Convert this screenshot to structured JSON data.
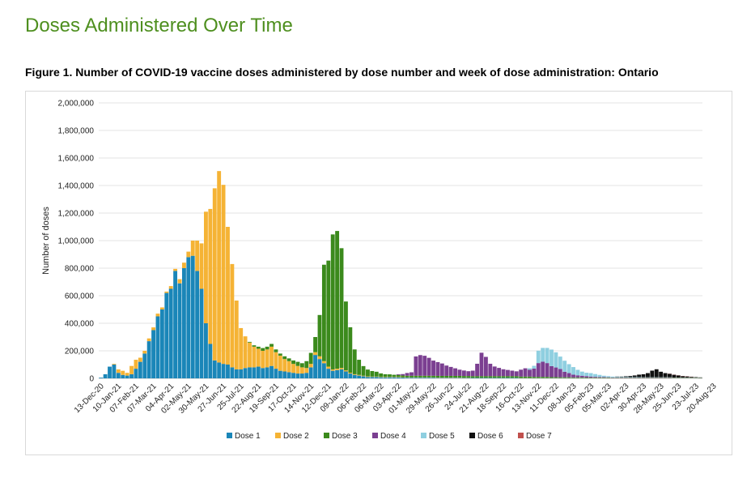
{
  "page": {
    "heading": "Doses Administered Over Time",
    "caption": "Figure 1. Number of COVID-19 vaccine doses administered by dose number and week of dose administration: Ontario"
  },
  "chart_data": {
    "type": "bar",
    "stacked": true,
    "title": "Figure 1. Number of COVID-19 vaccine doses administered by dose number and week of dose administration: Ontario",
    "xlabel": "",
    "ylabel": "Number of doses",
    "ylim": [
      0,
      2000000
    ],
    "yticks": [
      0,
      200000,
      400000,
      600000,
      800000,
      1000000,
      1200000,
      1400000,
      1600000,
      1800000,
      2000000
    ],
    "ytick_labels": [
      "0",
      "200,000",
      "400,000",
      "600,000",
      "800,000",
      "1,000,000",
      "1,200,000",
      "1,400,000",
      "1,600,000",
      "1,800,000",
      "2,000,000"
    ],
    "xtick_labels": [
      "13-Dec-20",
      "10-Jan-21",
      "07-Feb-21",
      "07-Mar-21",
      "04-Apr-21",
      "02-May-21",
      "30-May-21",
      "27-Jun-21",
      "25-Jul-21",
      "22-Aug-21",
      "19-Sep-21",
      "17-Oct-21",
      "14-Nov-21",
      "12-Dec-21",
      "09-Jan-22",
      "06-Feb-22",
      "06-Mar-22",
      "03-Apr-22",
      "01-May-22",
      "29-May-22",
      "26-Jun-22",
      "24-Jul-22",
      "21-Aug-22",
      "18-Sep-22",
      "16-Oct-22",
      "13-Nov-22",
      "11-Dec-22",
      "08-Jan-23",
      "05-Feb-23",
      "05-Mar-23",
      "02-Apr-23",
      "30-Apr-23",
      "28-May-23",
      "25-Jun-23",
      "23-Jul-23",
      "20-Aug-23"
    ],
    "tick_every": 4,
    "grid": true,
    "legend_position": "bottom",
    "series": [
      {
        "name": "Dose 1",
        "color": "#1a86b8",
        "values": [
          5000,
          30000,
          85000,
          100000,
          40000,
          25000,
          20000,
          30000,
          70000,
          120000,
          180000,
          270000,
          350000,
          450000,
          500000,
          620000,
          650000,
          780000,
          690000,
          800000,
          880000,
          890000,
          780000,
          650000,
          400000,
          250000,
          130000,
          115000,
          105000,
          100000,
          80000,
          65000,
          65000,
          75000,
          80000,
          80000,
          85000,
          75000,
          80000,
          90000,
          70000,
          55000,
          50000,
          45000,
          40000,
          35000,
          35000,
          40000,
          80000,
          170000,
          140000,
          110000,
          70000,
          55000,
          60000,
          65000,
          50000,
          35000,
          25000,
          20000,
          15000,
          10000,
          10000,
          10000,
          8000,
          7000,
          8000,
          8000,
          7000,
          6000,
          5000,
          5000,
          5000,
          5000,
          5000,
          5000,
          5000,
          4000,
          4000,
          4000,
          4000,
          4000,
          4000,
          3000,
          3000,
          3000,
          3000,
          3000,
          3000,
          3000,
          3000,
          3000,
          3000,
          3000,
          3000,
          3000,
          2000,
          2000,
          2000,
          2000,
          2000,
          2000,
          2000,
          2000,
          2000,
          2000,
          2000,
          2000,
          2000,
          2000,
          2000,
          2000,
          1000,
          1000,
          1000,
          1000,
          1000,
          1000,
          1000,
          1000,
          1000,
          1000,
          1000,
          1000,
          1000,
          1000,
          1000,
          1000,
          1000,
          1000,
          1000,
          1000,
          1000,
          1000,
          1000,
          1000,
          1000,
          1000
        ]
      },
      {
        "name": "Dose 2",
        "color": "#f5b335",
        "values": [
          0,
          0,
          0,
          5000,
          25000,
          30000,
          20000,
          60000,
          65000,
          30000,
          20000,
          20000,
          20000,
          20000,
          15000,
          10000,
          20000,
          15000,
          30000,
          40000,
          40000,
          110000,
          220000,
          330000,
          810000,
          980000,
          1250000,
          1390000,
          1300000,
          1000000,
          750000,
          500000,
          300000,
          230000,
          180000,
          150000,
          130000,
          125000,
          130000,
          140000,
          120000,
          110000,
          90000,
          80000,
          65000,
          55000,
          45000,
          35000,
          25000,
          20000,
          20000,
          15000,
          15000,
          10000,
          10000,
          10000,
          8000,
          6000,
          5000,
          5000,
          4000,
          4000,
          3000,
          3000,
          3000,
          3000,
          3000,
          3000,
          3000,
          3000,
          2000,
          2000,
          2000,
          2000,
          2000,
          2000,
          2000,
          2000,
          2000,
          2000,
          2000,
          2000,
          2000,
          2000,
          2000,
          1000,
          1000,
          1000,
          1000,
          1000,
          1000,
          1000,
          1000,
          1000,
          1000,
          1000,
          1000,
          1000,
          1000,
          1000,
          1000,
          1000,
          1000,
          1000,
          1000,
          1000,
          1000,
          1000,
          1000,
          1000,
          1000,
          1000,
          1000,
          1000,
          1000,
          1000,
          1000,
          1000,
          1000,
          1000,
          1000,
          1000,
          1000,
          1000,
          1000,
          1000,
          1000,
          1000,
          1000,
          1000,
          1000,
          1000,
          1000,
          1000,
          1000,
          1000,
          1000,
          1000
        ]
      },
      {
        "name": "Dose 3",
        "color": "#3b8a1c",
        "values": [
          0,
          0,
          0,
          0,
          0,
          0,
          0,
          0,
          0,
          0,
          0,
          0,
          0,
          0,
          0,
          0,
          0,
          0,
          0,
          0,
          0,
          0,
          0,
          0,
          0,
          0,
          0,
          0,
          0,
          0,
          0,
          0,
          0,
          0,
          5000,
          10000,
          15000,
          20000,
          20000,
          20000,
          20000,
          15000,
          20000,
          20000,
          25000,
          30000,
          30000,
          50000,
          80000,
          110000,
          300000,
          700000,
          770000,
          980000,
          1000000,
          870000,
          500000,
          330000,
          180000,
          110000,
          70000,
          50000,
          40000,
          35000,
          25000,
          20000,
          18000,
          15000,
          15000,
          12000,
          12000,
          12000,
          12000,
          12000,
          12000,
          12000,
          12000,
          12000,
          12000,
          12000,
          12000,
          12000,
          12000,
          12000,
          12000,
          12000,
          12000,
          12000,
          12000,
          12000,
          12000,
          12000,
          12000,
          12000,
          12000,
          12000,
          10000,
          10000,
          10000,
          8000,
          8000,
          8000,
          8000,
          6000,
          6000,
          5000,
          5000,
          5000,
          4000,
          4000,
          4000,
          3000,
          3000,
          3000,
          3000,
          3000,
          3000,
          2000,
          2000,
          2000,
          2000,
          2000,
          2000,
          2000,
          2000,
          2000,
          2000,
          2000,
          2000,
          2000,
          2000,
          2000,
          2000,
          2000,
          2000,
          2000,
          2000,
          1000
        ]
      },
      {
        "name": "Dose 4",
        "color": "#7b3f91",
        "values": [
          0,
          0,
          0,
          0,
          0,
          0,
          0,
          0,
          0,
          0,
          0,
          0,
          0,
          0,
          0,
          0,
          0,
          0,
          0,
          0,
          0,
          0,
          0,
          0,
          0,
          0,
          0,
          0,
          0,
          0,
          0,
          0,
          0,
          0,
          0,
          0,
          0,
          0,
          0,
          0,
          0,
          0,
          0,
          0,
          0,
          0,
          0,
          0,
          0,
          0,
          0,
          0,
          0,
          0,
          0,
          0,
          0,
          0,
          0,
          0,
          0,
          0,
          0,
          0,
          0,
          0,
          0,
          0,
          5000,
          10000,
          20000,
          25000,
          140000,
          150000,
          145000,
          130000,
          110000,
          100000,
          90000,
          75000,
          65000,
          55000,
          45000,
          40000,
          35000,
          40000,
          90000,
          170000,
          140000,
          90000,
          70000,
          60000,
          50000,
          45000,
          40000,
          35000,
          50000,
          60000,
          50000,
          60000,
          100000,
          110000,
          100000,
          80000,
          70000,
          60000,
          40000,
          30000,
          20000,
          15000,
          12000,
          10000,
          8000,
          6000,
          5000,
          4000,
          3000,
          3000,
          2000,
          2000,
          2000,
          2000,
          2000,
          2000,
          2000,
          2000,
          2000,
          2000,
          2000,
          2000,
          2000,
          1000,
          1000,
          1000,
          1000,
          1000,
          1000,
          1000,
          1000,
          1000
        ]
      },
      {
        "name": "Dose 5",
        "color": "#8fcfe0",
        "values": [
          0,
          0,
          0,
          0,
          0,
          0,
          0,
          0,
          0,
          0,
          0,
          0,
          0,
          0,
          0,
          0,
          0,
          0,
          0,
          0,
          0,
          0,
          0,
          0,
          0,
          0,
          0,
          0,
          0,
          0,
          0,
          0,
          0,
          0,
          0,
          0,
          0,
          0,
          0,
          0,
          0,
          0,
          0,
          0,
          0,
          0,
          0,
          0,
          0,
          0,
          0,
          0,
          0,
          0,
          0,
          0,
          0,
          0,
          0,
          0,
          0,
          0,
          0,
          0,
          0,
          0,
          0,
          0,
          0,
          0,
          0,
          0,
          0,
          0,
          0,
          0,
          0,
          0,
          0,
          0,
          0,
          0,
          0,
          0,
          0,
          0,
          0,
          0,
          0,
          0,
          0,
          0,
          0,
          0,
          0,
          0,
          0,
          0,
          10000,
          20000,
          90000,
          100000,
          110000,
          120000,
          110000,
          90000,
          80000,
          65000,
          55000,
          40000,
          30000,
          25000,
          25000,
          20000,
          15000,
          10000,
          8000,
          6000,
          5000,
          4000,
          4000,
          3000,
          3000,
          3000,
          2000,
          2000,
          2000,
          2000,
          2000,
          2000,
          2000,
          1000,
          1000,
          1000,
          1000,
          1000,
          1000,
          1000
        ]
      },
      {
        "name": "Dose 6",
        "color": "#111111",
        "values": [
          0,
          0,
          0,
          0,
          0,
          0,
          0,
          0,
          0,
          0,
          0,
          0,
          0,
          0,
          0,
          0,
          0,
          0,
          0,
          0,
          0,
          0,
          0,
          0,
          0,
          0,
          0,
          0,
          0,
          0,
          0,
          0,
          0,
          0,
          0,
          0,
          0,
          0,
          0,
          0,
          0,
          0,
          0,
          0,
          0,
          0,
          0,
          0,
          0,
          0,
          0,
          0,
          0,
          0,
          0,
          0,
          0,
          0,
          0,
          0,
          0,
          0,
          0,
          0,
          0,
          0,
          0,
          0,
          0,
          0,
          0,
          0,
          0,
          0,
          0,
          0,
          0,
          0,
          0,
          0,
          0,
          0,
          0,
          0,
          0,
          0,
          0,
          0,
          0,
          0,
          0,
          0,
          0,
          0,
          0,
          0,
          0,
          0,
          0,
          0,
          0,
          0,
          0,
          0,
          0,
          0,
          0,
          0,
          0,
          0,
          0,
          0,
          0,
          0,
          0,
          0,
          0,
          0,
          2000,
          3000,
          5000,
          8000,
          12000,
          18000,
          22000,
          30000,
          48000,
          58000,
          40000,
          30000,
          25000,
          20000,
          15000,
          10000,
          8000,
          5000,
          3000,
          2000,
          1000,
          1000
        ]
      },
      {
        "name": "Dose 7",
        "color": "#c0504d",
        "values": [
          0,
          0,
          0,
          0,
          0,
          0,
          0,
          0,
          0,
          0,
          0,
          0,
          0,
          0,
          0,
          0,
          0,
          0,
          0,
          0,
          0,
          0,
          0,
          0,
          0,
          0,
          0,
          0,
          0,
          0,
          0,
          0,
          0,
          0,
          0,
          0,
          0,
          0,
          0,
          0,
          0,
          0,
          0,
          0,
          0,
          0,
          0,
          0,
          0,
          0,
          0,
          0,
          0,
          0,
          0,
          0,
          0,
          0,
          0,
          0,
          0,
          0,
          0,
          0,
          0,
          0,
          0,
          0,
          0,
          0,
          0,
          0,
          0,
          0,
          0,
          0,
          0,
          0,
          0,
          0,
          0,
          0,
          0,
          0,
          0,
          0,
          0,
          0,
          0,
          0,
          0,
          0,
          0,
          0,
          0,
          0,
          0,
          0,
          0,
          0,
          0,
          0,
          0,
          0,
          0,
          0,
          0,
          0,
          0,
          0,
          0,
          0,
          0,
          0,
          0,
          0,
          0,
          0,
          0,
          0,
          0,
          0,
          0,
          0,
          0,
          0,
          0,
          0,
          0,
          0,
          1000,
          1000,
          1000,
          1000,
          1000,
          1000,
          0,
          0,
          0,
          0
        ]
      }
    ]
  }
}
